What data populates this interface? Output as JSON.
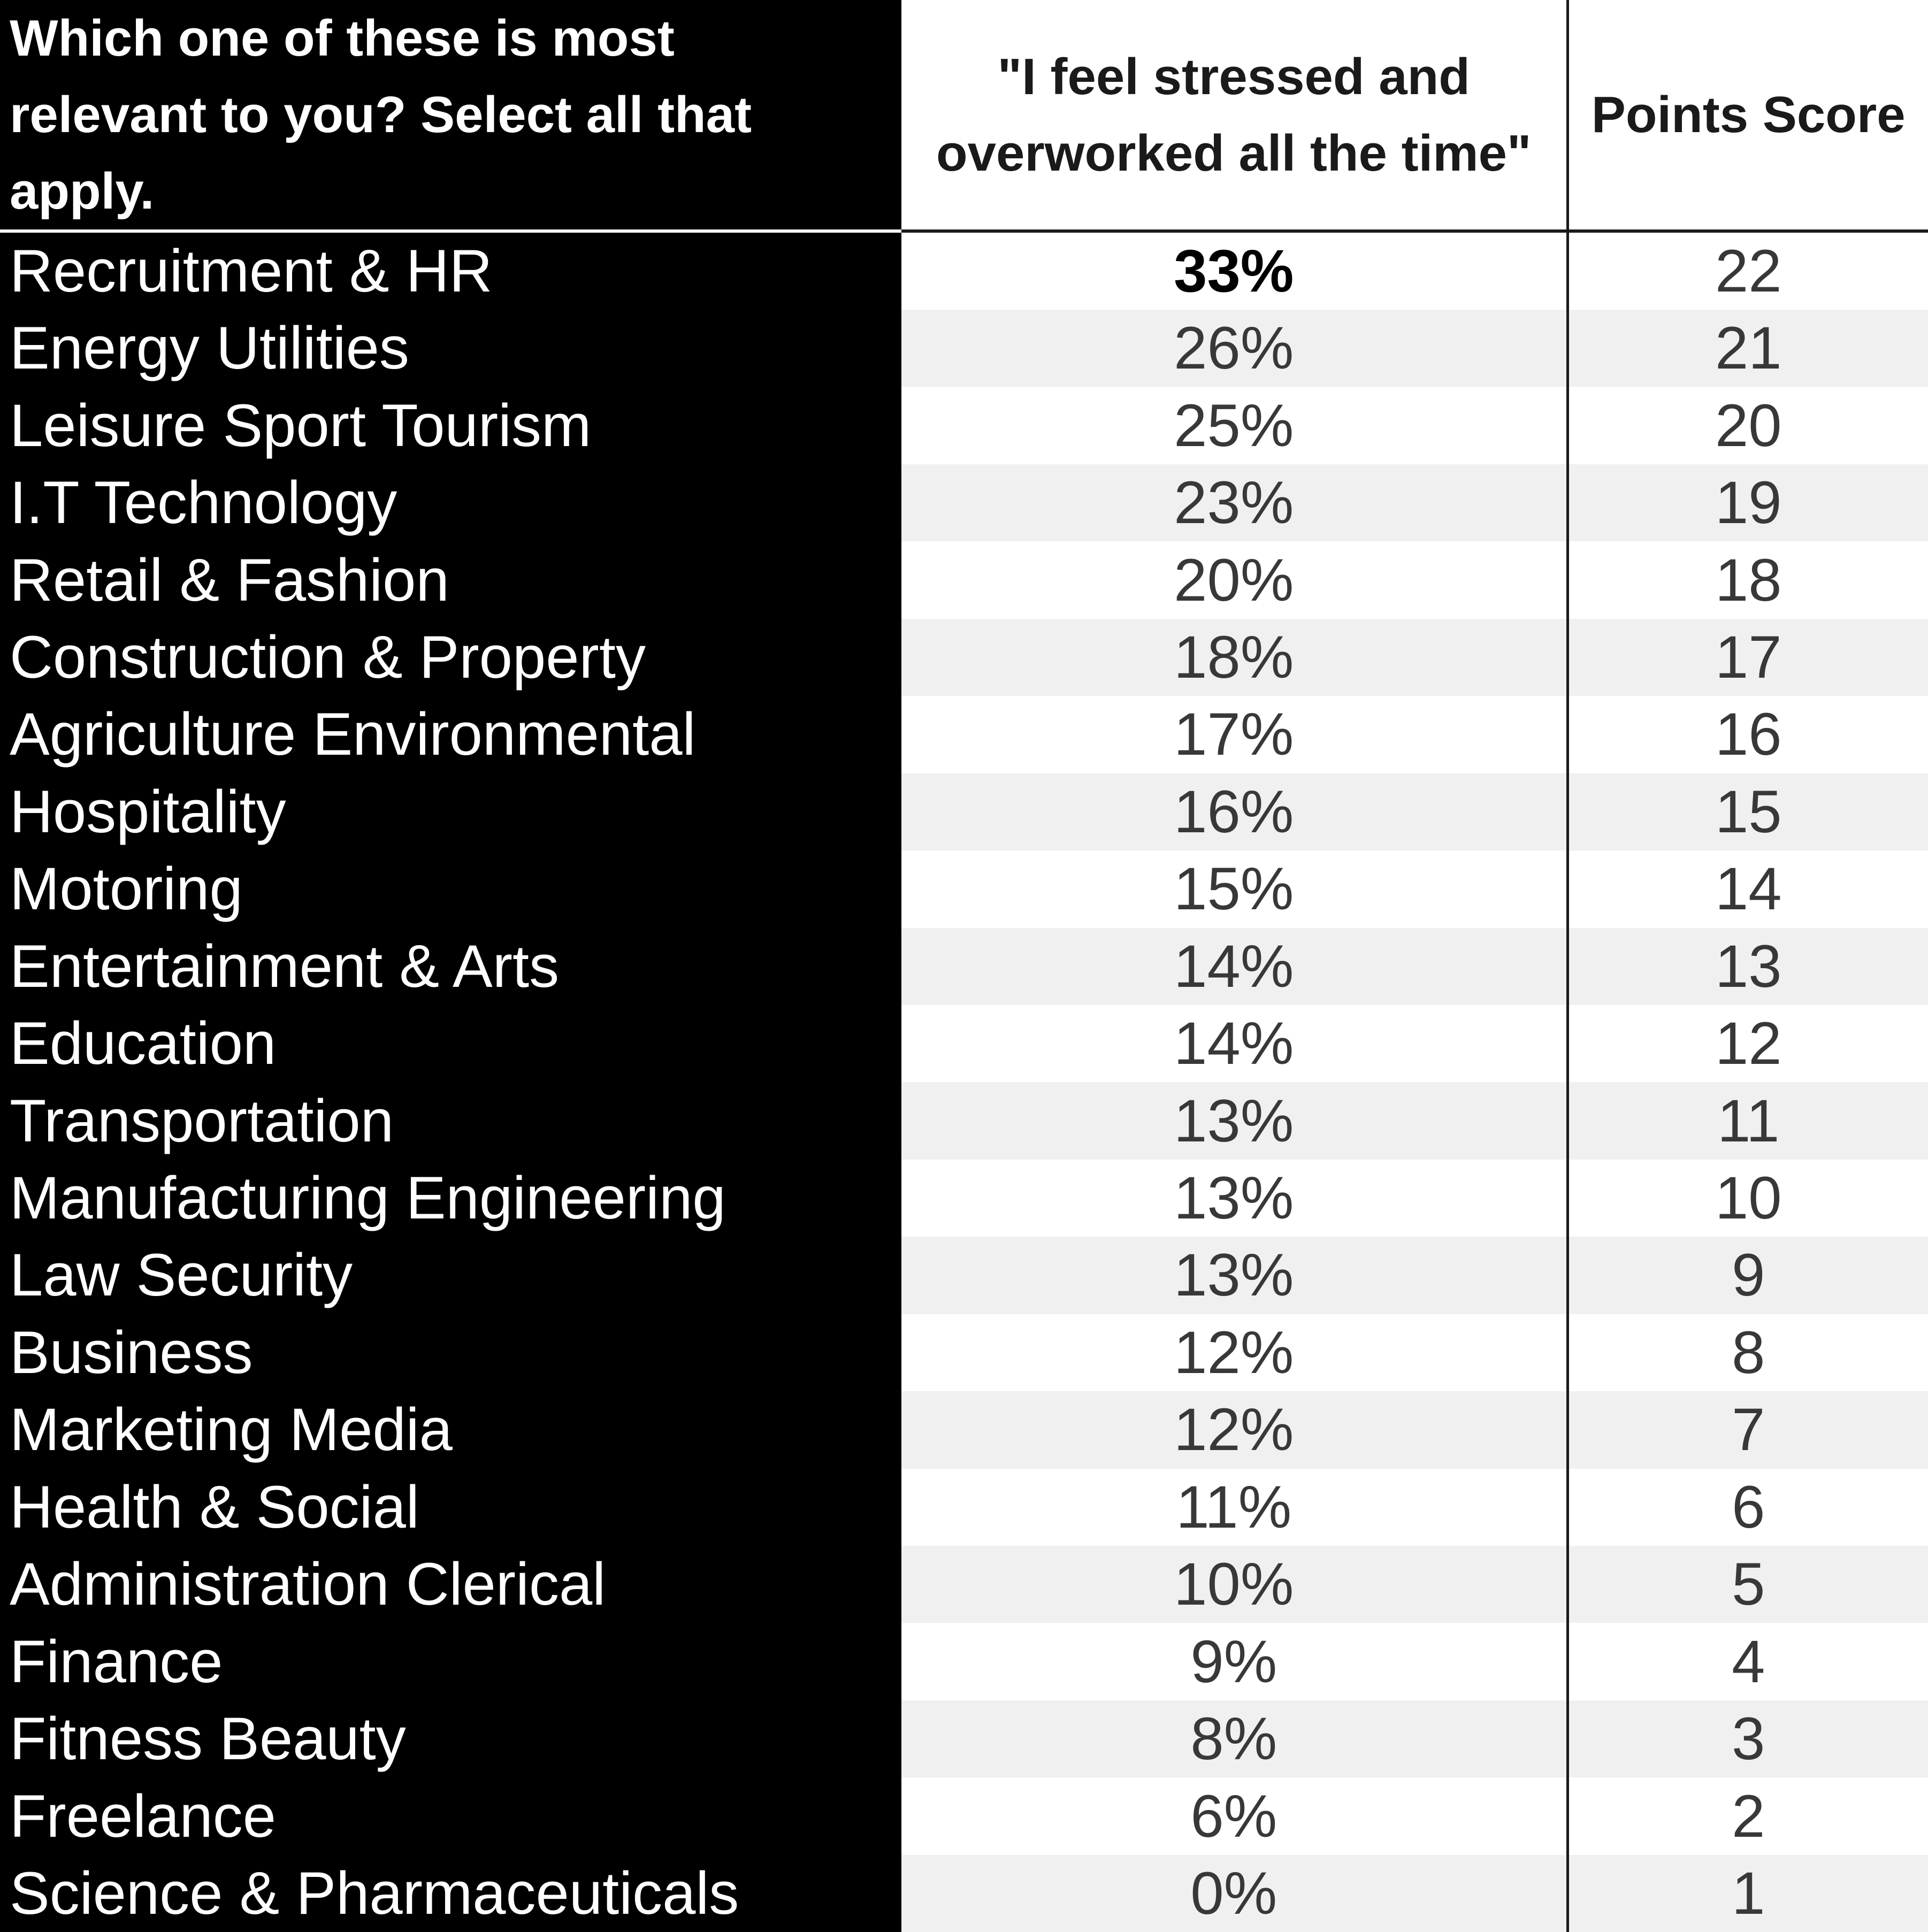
{
  "chart_data": {
    "type": "table",
    "title": "",
    "columns": [
      "Which one of these is most\nrelevant to you? Select all that\napply.",
      "\"I feel stressed and\noverworked all the time\"",
      "Points Score"
    ],
    "rows": [
      {
        "category": "Recruitment & HR",
        "stressed_pct": "33%",
        "points": "22"
      },
      {
        "category": "Energy Utilities",
        "stressed_pct": "26%",
        "points": "21"
      },
      {
        "category": "Leisure Sport Tourism",
        "stressed_pct": "25%",
        "points": "20"
      },
      {
        "category": "I.T Technology",
        "stressed_pct": "23%",
        "points": "19"
      },
      {
        "category": "Retail & Fashion",
        "stressed_pct": "20%",
        "points": "18"
      },
      {
        "category": "Construction & Property",
        "stressed_pct": "18%",
        "points": "17"
      },
      {
        "category": "Agriculture Environmental",
        "stressed_pct": "17%",
        "points": "16"
      },
      {
        "category": "Hospitality",
        "stressed_pct": "16%",
        "points": "15"
      },
      {
        "category": "Motoring",
        "stressed_pct": "15%",
        "points": "14"
      },
      {
        "category": "Entertainment & Arts",
        "stressed_pct": "14%",
        "points": "13"
      },
      {
        "category": "Education",
        "stressed_pct": "14%",
        "points": "12"
      },
      {
        "category": "Transportation",
        "stressed_pct": "13%",
        "points": "11"
      },
      {
        "category": "Manufacturing Engineering",
        "stressed_pct": "13%",
        "points": "10"
      },
      {
        "category": "Law Security",
        "stressed_pct": "13%",
        "points": "9"
      },
      {
        "category": "Business",
        "stressed_pct": "12%",
        "points": "8"
      },
      {
        "category": "Marketing Media",
        "stressed_pct": "12%",
        "points": "7"
      },
      {
        "category": "Health & Social",
        "stressed_pct": "11%",
        "points": "6"
      },
      {
        "category": "Administration Clerical",
        "stressed_pct": "10%",
        "points": "5"
      },
      {
        "category": "Finance",
        "stressed_pct": "9%",
        "points": "4"
      },
      {
        "category": "Fitness Beauty",
        "stressed_pct": "8%",
        "points": "3"
      },
      {
        "category": "Freelance",
        "stressed_pct": "6%",
        "points": "2"
      },
      {
        "category": "Science & Pharmaceuticals",
        "stressed_pct": "0%",
        "points": "1"
      }
    ]
  },
  "colors": {
    "question_column_bg": "#000000",
    "question_column_text": "#ffffff",
    "header_text": "#1a1a1a",
    "data_text": "#383838",
    "row_band": "#f0f0f0",
    "grid_line": "#1a1a1a"
  }
}
